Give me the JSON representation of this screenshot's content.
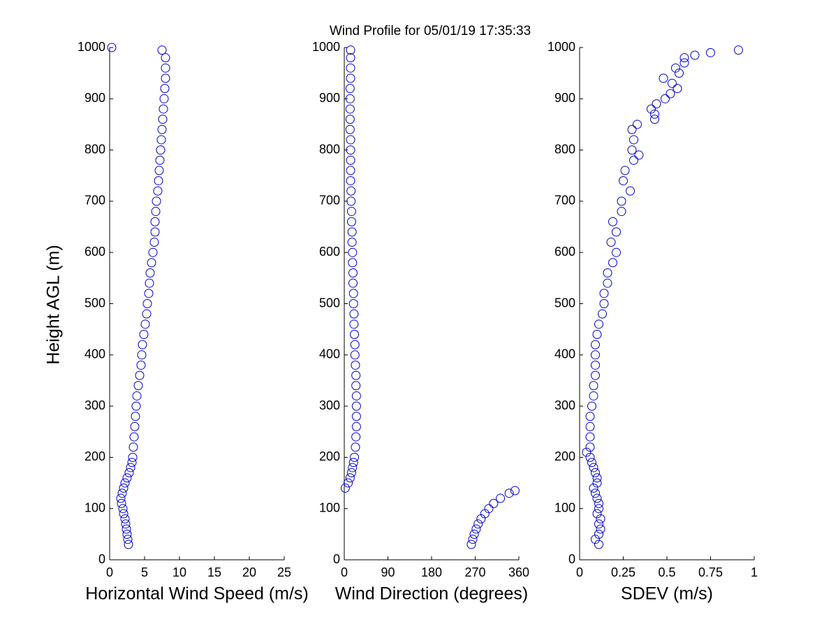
{
  "chart_data": [
    {
      "type": "scatter",
      "title": "Wind Profile for  05/01/19 17:35:33",
      "xlabel": "Horizontal Wind Speed (m/s)",
      "ylabel": "Height AGL (m)",
      "color": "#0000cc",
      "x": [
        2.7,
        2.6,
        2.5,
        2.4,
        2.3,
        2.2,
        2.0,
        1.9,
        1.7,
        1.6,
        1.8,
        2.0,
        2.2,
        2.5,
        2.8,
        3.0,
        3.2,
        3.3,
        3.4,
        3.5,
        3.6,
        3.7,
        3.8,
        3.9,
        4.1,
        4.3,
        4.5,
        4.6,
        4.7,
        4.9,
        5.1,
        5.3,
        5.4,
        5.6,
        5.7,
        5.8,
        6.0,
        6.2,
        6.4,
        6.5,
        6.5,
        6.6,
        6.7,
        6.9,
        7.0,
        7.1,
        7.2,
        7.3,
        7.4,
        7.5,
        7.6,
        7.7,
        7.8,
        7.9,
        8.0,
        8.0,
        8.0,
        7.5,
        0.3
      ],
      "values": [
        30,
        40,
        50,
        60,
        70,
        80,
        90,
        100,
        110,
        120,
        130,
        140,
        150,
        160,
        170,
        180,
        190,
        200,
        220,
        240,
        260,
        280,
        300,
        320,
        340,
        360,
        380,
        400,
        420,
        440,
        460,
        480,
        500,
        520,
        540,
        560,
        580,
        600,
        620,
        640,
        660,
        680,
        700,
        720,
        740,
        760,
        780,
        800,
        820,
        840,
        860,
        880,
        900,
        920,
        940,
        960,
        980,
        995,
        1000
      ],
      "xlim": [
        0,
        25
      ],
      "xticks": [
        0,
        5,
        10,
        15,
        20,
        25
      ],
      "ylim": [
        0,
        1000
      ],
      "yticks": [
        0,
        100,
        200,
        300,
        400,
        500,
        600,
        700,
        800,
        900,
        1000
      ]
    },
    {
      "type": "scatter",
      "xlabel": "Wind Direction (degrees)",
      "color": "#0000cc",
      "x": [
        262,
        265,
        268,
        272,
        276,
        282,
        290,
        298,
        308,
        322,
        340,
        352,
        2,
        8,
        12,
        15,
        17,
        19,
        21,
        23,
        24,
        25,
        25,
        25,
        25,
        24,
        24,
        23,
        22,
        22,
        21,
        20,
        20,
        19,
        19,
        18,
        18,
        17,
        17,
        16,
        16,
        15,
        15,
        14,
        14,
        13,
        13,
        13,
        13,
        13,
        12,
        12,
        12,
        12,
        12,
        13,
        13,
        13,
        13
      ],
      "values": [
        30,
        40,
        50,
        60,
        70,
        80,
        90,
        100,
        110,
        120,
        130,
        135,
        140,
        150,
        160,
        170,
        180,
        190,
        200,
        220,
        240,
        260,
        280,
        300,
        320,
        340,
        360,
        380,
        400,
        420,
        440,
        460,
        480,
        500,
        520,
        540,
        560,
        580,
        600,
        620,
        640,
        660,
        680,
        700,
        720,
        740,
        760,
        780,
        800,
        820,
        840,
        860,
        880,
        900,
        920,
        940,
        960,
        980,
        995
      ],
      "xlim": [
        0,
        360
      ],
      "xticks": [
        0,
        90,
        180,
        270,
        360
      ],
      "ylim": [
        0,
        1000
      ],
      "yticks": [
        0,
        100,
        200,
        300,
        400,
        500,
        600,
        700,
        800,
        900,
        1000
      ]
    },
    {
      "type": "scatter",
      "xlabel": "SDEV  (m/s)",
      "color": "#0000cc",
      "x": [
        0.11,
        0.09,
        0.11,
        0.12,
        0.11,
        0.12,
        0.1,
        0.11,
        0.11,
        0.1,
        0.09,
        0.08,
        0.1,
        0.1,
        0.09,
        0.08,
        0.07,
        0.06,
        0.04,
        0.06,
        0.06,
        0.06,
        0.06,
        0.07,
        0.08,
        0.08,
        0.09,
        0.09,
        0.09,
        0.09,
        0.1,
        0.11,
        0.13,
        0.14,
        0.14,
        0.16,
        0.16,
        0.19,
        0.21,
        0.18,
        0.21,
        0.19,
        0.24,
        0.24,
        0.29,
        0.25,
        0.26,
        0.31,
        0.34,
        0.3,
        0.31,
        0.3,
        0.33,
        0.43,
        0.43,
        0.41,
        0.44,
        0.49,
        0.52,
        0.56,
        0.53,
        0.48,
        0.57,
        0.55,
        0.6,
        0.6,
        0.66,
        0.75,
        0.91
      ],
      "values": [
        30,
        40,
        50,
        60,
        70,
        80,
        90,
        100,
        110,
        120,
        130,
        140,
        150,
        160,
        170,
        180,
        190,
        200,
        210,
        220,
        240,
        260,
        280,
        300,
        320,
        340,
        360,
        380,
        400,
        420,
        440,
        460,
        480,
        500,
        520,
        540,
        560,
        580,
        600,
        620,
        640,
        660,
        680,
        700,
        720,
        740,
        760,
        780,
        790,
        800,
        820,
        840,
        850,
        860,
        870,
        880,
        890,
        900,
        910,
        920,
        930,
        940,
        950,
        960,
        970,
        980,
        985,
        990,
        995
      ],
      "xlim": [
        0,
        1
      ],
      "xticks": [
        0,
        0.25,
        0.5,
        0.75,
        1
      ],
      "ylim": [
        0,
        1000
      ],
      "yticks": [
        0,
        100,
        200,
        300,
        400,
        500,
        600,
        700,
        800,
        900,
        1000
      ]
    }
  ]
}
